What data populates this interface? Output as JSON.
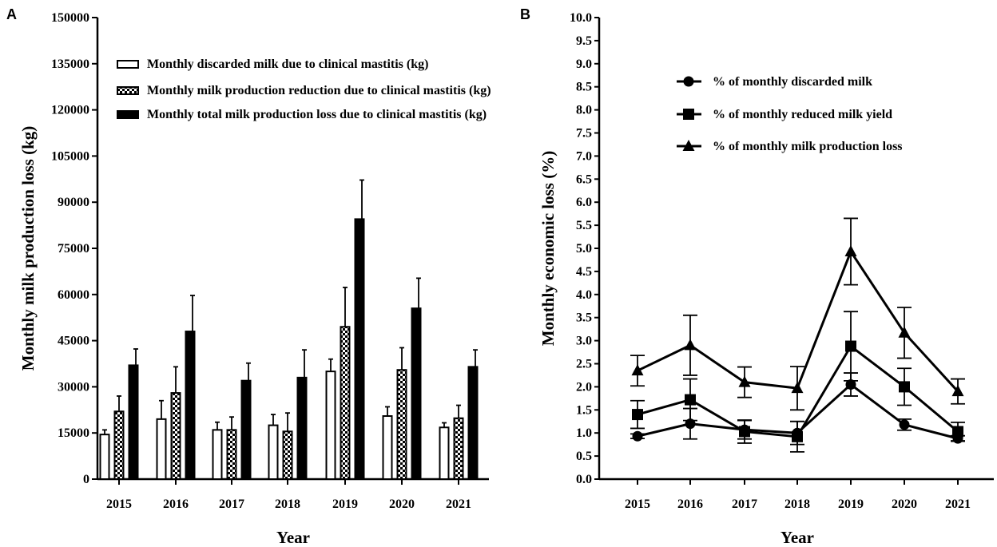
{
  "chart_data": [
    {
      "panel": "A",
      "type": "bar",
      "xlabel": "Year",
      "ylabel": "Monthly milk production loss (kg)",
      "ylim": [
        0,
        150000
      ],
      "yticks": [
        0,
        15000,
        30000,
        45000,
        60000,
        75000,
        90000,
        105000,
        120000,
        135000,
        150000
      ],
      "categories": [
        "2015",
        "2016",
        "2017",
        "2018",
        "2019",
        "2020",
        "2021"
      ],
      "legend_position": "top-left",
      "series": [
        {
          "name": "Monthly discarded milk due to clinical mastitis (kg)",
          "style": "open",
          "values": [
            14500,
            19500,
            16000,
            17500,
            35000,
            20500,
            16800
          ],
          "errors": [
            1500,
            6000,
            2500,
            3500,
            4000,
            3000,
            1500
          ]
        },
        {
          "name": "Monthly milk production reduction due to clinical mastitis (kg)",
          "style": "checker",
          "values": [
            22000,
            28000,
            16000,
            15500,
            49500,
            35500,
            19800
          ],
          "errors": [
            5000,
            8500,
            4200,
            6000,
            12800,
            7200,
            4200
          ]
        },
        {
          "name": "Monthly total milk production loss due to clinical mastitis (kg)",
          "style": "solid",
          "values": [
            37000,
            48000,
            32000,
            33000,
            84500,
            55500,
            36500
          ],
          "errors": [
            5300,
            11700,
            5700,
            9000,
            12700,
            9800,
            5500
          ]
        }
      ]
    },
    {
      "panel": "B",
      "type": "line",
      "xlabel": "Year",
      "ylabel": "Monthly economic loss (%)",
      "ylim": [
        0,
        10
      ],
      "yticks": [
        "0.0",
        "0.5",
        "1.0",
        "1.5",
        "2.0",
        "2.5",
        "3.0",
        "3.5",
        "4.0",
        "4.5",
        "5.0",
        "5.5",
        "6.0",
        "6.5",
        "7.0",
        "7.5",
        "8.0",
        "8.5",
        "9.0",
        "9.5",
        "10.0"
      ],
      "categories": [
        "2015",
        "2016",
        "2017",
        "2018",
        "2019",
        "2020",
        "2021"
      ],
      "legend_position": "top-left",
      "series": [
        {
          "name": "% of monthly discarded milk",
          "marker": "circle",
          "values": [
            0.93,
            1.2,
            1.07,
            1.0,
            2.05,
            1.18,
            0.88
          ],
          "errors": [
            0.05,
            0.33,
            0.2,
            0.25,
            0.25,
            0.12,
            0.06
          ]
        },
        {
          "name": "% of monthly reduced milk yield",
          "marker": "square",
          "values": [
            1.4,
            1.72,
            1.03,
            0.92,
            2.88,
            2.0,
            1.03
          ],
          "errors": [
            0.3,
            0.45,
            0.25,
            0.33,
            0.75,
            0.4,
            0.2
          ]
        },
        {
          "name": "% of monthly milk production loss",
          "marker": "triangle",
          "values": [
            2.35,
            2.9,
            2.1,
            1.97,
            4.93,
            3.17,
            1.9
          ],
          "errors": [
            0.33,
            0.65,
            0.33,
            0.47,
            0.72,
            0.55,
            0.27
          ]
        }
      ]
    }
  ]
}
